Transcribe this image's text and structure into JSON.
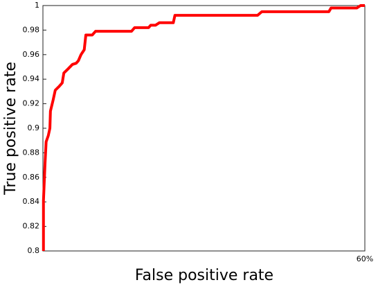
{
  "chart_data": {
    "type": "line",
    "xlabel": "False positive rate",
    "ylabel": "True positive rate",
    "xlim": [
      0,
      60
    ],
    "xticks": [
      {
        "value": 60,
        "label": "60%"
      }
    ],
    "ylim": [
      0.8,
      1
    ],
    "yticks": [
      0.8,
      0.82,
      0.84,
      0.86,
      0.88,
      0.9,
      0.92,
      0.94,
      0.96,
      0.98,
      1
    ],
    "x": [
      0.1,
      0.1,
      0.4,
      0.6,
      1.0,
      1.3,
      1.4,
      1.9,
      2.3,
      3.0,
      3.6,
      3.9,
      4.6,
      5.5,
      6.2,
      6.6,
      7.1,
      7.7,
      8.0,
      9.2,
      9.8,
      16.5,
      17.1,
      19.7,
      20.1,
      21.0,
      21.7,
      24.3,
      24.6,
      40.0,
      40.8,
      53.3,
      53.7,
      58.5,
      59.2,
      60
    ],
    "series": [
      {
        "color": "#ff0000",
        "values": [
          0.8,
          0.841,
          0.872,
          0.889,
          0.894,
          0.9,
          0.914,
          0.923,
          0.931,
          0.934,
          0.937,
          0.945,
          0.948,
          0.952,
          0.953,
          0.955,
          0.96,
          0.964,
          0.976,
          0.976,
          0.979,
          0.979,
          0.982,
          0.982,
          0.984,
          0.984,
          0.986,
          0.986,
          0.992,
          0.992,
          0.995,
          0.995,
          0.998,
          0.998,
          1.0,
          1.0
        ]
      }
    ]
  }
}
